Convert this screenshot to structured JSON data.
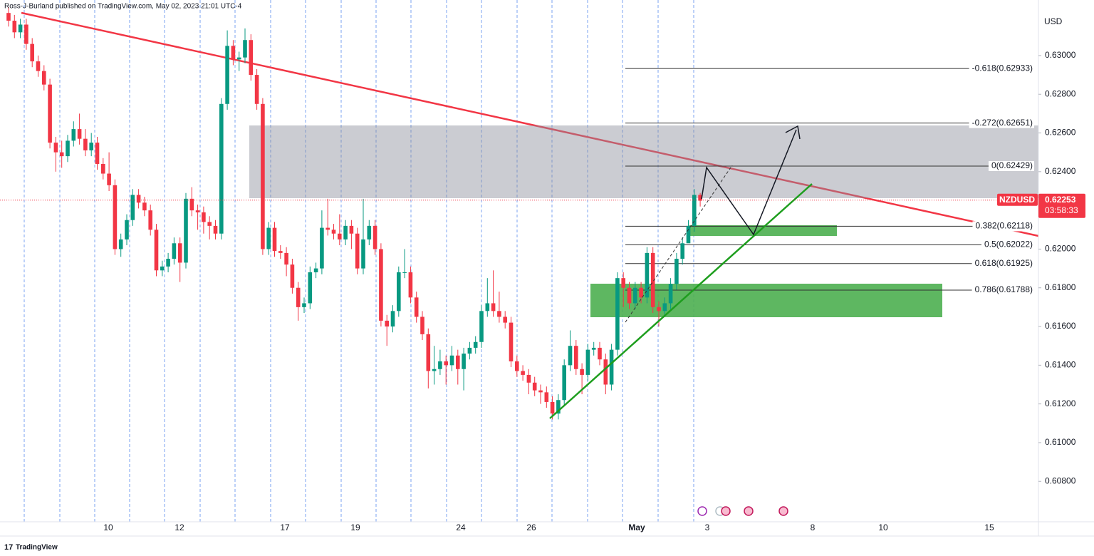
{
  "chart_data": {
    "type": "candlestick",
    "header": "Ross-J-Burland published on TradingView.com, May 02, 2023 21:01 UTC-4",
    "footer": "TradingView",
    "currency": "USD",
    "symbol": "NZDUSD",
    "last_price": 0.62253,
    "countdown": "03:58:33",
    "up_color": "#089981",
    "down_color": "#f23645",
    "ylim": [
      0.60591,
      0.63287
    ],
    "yticks": [
      {
        "value": 0.608,
        "label": "0.60800"
      },
      {
        "value": 0.61,
        "label": "0.61000"
      },
      {
        "value": 0.612,
        "label": "0.61200"
      },
      {
        "value": 0.614,
        "label": "0.61400"
      },
      {
        "value": 0.616,
        "label": "0.61600"
      },
      {
        "value": 0.618,
        "label": "0.61800"
      },
      {
        "value": 0.62,
        "label": "0.62000"
      },
      {
        "value": 0.622,
        "label": "0.62200"
      },
      {
        "value": 0.624,
        "label": "0.62400"
      },
      {
        "value": 0.626,
        "label": "0.62600"
      },
      {
        "value": 0.628,
        "label": "0.62800"
      },
      {
        "value": 0.63,
        "label": "0.63000"
      }
    ],
    "grid": false,
    "xtick_labels": [
      "10",
      "12",
      "17",
      "19",
      "24",
      "26",
      "May",
      "3",
      "8",
      "10",
      "15"
    ],
    "fib_levels": [
      {
        "label": "-0.618(0.62933)",
        "price": 0.62933
      },
      {
        "label": "-0.272(0.62651)",
        "price": 0.62651
      },
      {
        "label": "0(0.62429)",
        "price": 0.62429
      },
      {
        "label": "0.382(0.62118)",
        "price": 0.62118
      },
      {
        "label": "0.5(0.62022)",
        "price": 0.62022
      },
      {
        "label": "0.618(0.61925)",
        "price": 0.61925
      },
      {
        "label": "0.786(0.61788)",
        "price": 0.61788
      }
    ],
    "candles": [
      [
        0.6322,
        0.6325,
        0.6315,
        0.6318
      ],
      [
        0.6318,
        0.6321,
        0.6309,
        0.6312
      ],
      [
        0.6312,
        0.6319,
        0.6309,
        0.6316
      ],
      [
        0.6316,
        0.6319,
        0.6303,
        0.6306
      ],
      [
        0.6306,
        0.6309,
        0.6294,
        0.6297
      ],
      [
        0.6297,
        0.63,
        0.6289,
        0.6292
      ],
      [
        0.6292,
        0.6295,
        0.6282,
        0.6285
      ],
      [
        0.6285,
        0.6288,
        0.6252,
        0.6255
      ],
      [
        0.6255,
        0.6258,
        0.624,
        0.625
      ],
      [
        0.625,
        0.6256,
        0.6242,
        0.6248
      ],
      [
        0.6248,
        0.6259,
        0.6245,
        0.6256
      ],
      [
        0.6256,
        0.6266,
        0.6253,
        0.6262
      ],
      [
        0.6262,
        0.627,
        0.6254,
        0.6257
      ],
      [
        0.6257,
        0.6262,
        0.6248,
        0.6251
      ],
      [
        0.6251,
        0.626,
        0.6248,
        0.6255
      ],
      [
        0.6255,
        0.6258,
        0.6241,
        0.6244
      ],
      [
        0.6244,
        0.6247,
        0.6236,
        0.6239
      ],
      [
        0.6239,
        0.625,
        0.623,
        0.6233
      ],
      [
        0.6233,
        0.6236,
        0.6197,
        0.62
      ],
      [
        0.62,
        0.6208,
        0.6196,
        0.6205
      ],
      [
        0.6205,
        0.6218,
        0.6202,
        0.6215
      ],
      [
        0.6215,
        0.6231,
        0.6212,
        0.6228
      ],
      [
        0.6228,
        0.6231,
        0.6221,
        0.6224
      ],
      [
        0.6224,
        0.6227,
        0.6217,
        0.622
      ],
      [
        0.622,
        0.6223,
        0.6207,
        0.621
      ],
      [
        0.621,
        0.6213,
        0.6186,
        0.6189
      ],
      [
        0.6189,
        0.6194,
        0.6186,
        0.6191
      ],
      [
        0.6191,
        0.6198,
        0.6188,
        0.6195
      ],
      [
        0.6195,
        0.6206,
        0.6192,
        0.6203
      ],
      [
        0.6203,
        0.6206,
        0.6183,
        0.6193
      ],
      [
        0.6193,
        0.6229,
        0.619,
        0.6226
      ],
      [
        0.6226,
        0.6232,
        0.6217,
        0.622
      ],
      [
        0.622,
        0.6223,
        0.621,
        0.6219
      ],
      [
        0.6219,
        0.6222,
        0.6208,
        0.6214
      ],
      [
        0.6214,
        0.6217,
        0.6205,
        0.6212
      ],
      [
        0.6212,
        0.6215,
        0.6205,
        0.6208
      ],
      [
        0.6208,
        0.6278,
        0.6205,
        0.6275
      ],
      [
        0.6275,
        0.6313,
        0.6272,
        0.6305
      ],
      [
        0.6305,
        0.6308,
        0.6295,
        0.6298
      ],
      [
        0.6298,
        0.6302,
        0.6292,
        0.6299
      ],
      [
        0.6299,
        0.6314,
        0.6296,
        0.6308
      ],
      [
        0.6308,
        0.6311,
        0.6287,
        0.629
      ],
      [
        0.629,
        0.6293,
        0.6272,
        0.6275
      ],
      [
        0.6275,
        0.6278,
        0.6197,
        0.62
      ],
      [
        0.62,
        0.6214,
        0.6197,
        0.6211
      ],
      [
        0.6211,
        0.6214,
        0.6196,
        0.6199
      ],
      [
        0.6199,
        0.6202,
        0.6195,
        0.6198
      ],
      [
        0.6198,
        0.6201,
        0.6186,
        0.6192
      ],
      [
        0.6192,
        0.6195,
        0.6177,
        0.618
      ],
      [
        0.618,
        0.6183,
        0.6163,
        0.617
      ],
      [
        0.617,
        0.6175,
        0.6167,
        0.6172
      ],
      [
        0.6172,
        0.6191,
        0.6169,
        0.6188
      ],
      [
        0.6188,
        0.6193,
        0.6185,
        0.619
      ],
      [
        0.619,
        0.622,
        0.6187,
        0.6211
      ],
      [
        0.6211,
        0.6226,
        0.6207,
        0.621
      ],
      [
        0.621,
        0.6213,
        0.6205,
        0.6208
      ],
      [
        0.6208,
        0.6218,
        0.6202,
        0.6205
      ],
      [
        0.6205,
        0.6215,
        0.6202,
        0.6212
      ],
      [
        0.6212,
        0.6215,
        0.62,
        0.6208
      ],
      [
        0.6208,
        0.6211,
        0.6187,
        0.619
      ],
      [
        0.619,
        0.6226,
        0.6187,
        0.6205
      ],
      [
        0.6205,
        0.6215,
        0.6202,
        0.6212
      ],
      [
        0.6212,
        0.6215,
        0.6197,
        0.62
      ],
      [
        0.62,
        0.6203,
        0.616,
        0.6163
      ],
      [
        0.6163,
        0.6166,
        0.615,
        0.616
      ],
      [
        0.616,
        0.6171,
        0.6157,
        0.6168
      ],
      [
        0.6168,
        0.6191,
        0.6165,
        0.6188
      ],
      [
        0.6188,
        0.62,
        0.6185,
        0.6188
      ],
      [
        0.6188,
        0.6191,
        0.6172,
        0.6175
      ],
      [
        0.6175,
        0.6178,
        0.6162,
        0.6165
      ],
      [
        0.6165,
        0.6168,
        0.6153,
        0.6156
      ],
      [
        0.6156,
        0.6159,
        0.6128,
        0.6137
      ],
      [
        0.6137,
        0.615,
        0.613,
        0.6138
      ],
      [
        0.6138,
        0.6148,
        0.6135,
        0.6142
      ],
      [
        0.6142,
        0.6145,
        0.613,
        0.614
      ],
      [
        0.614,
        0.615,
        0.6137,
        0.6145
      ],
      [
        0.6145,
        0.6148,
        0.613,
        0.6138
      ],
      [
        0.6138,
        0.6149,
        0.6127,
        0.6146
      ],
      [
        0.6146,
        0.6152,
        0.6143,
        0.6149
      ],
      [
        0.6149,
        0.6155,
        0.6146,
        0.6152
      ],
      [
        0.6152,
        0.6171,
        0.6149,
        0.6168
      ],
      [
        0.6168,
        0.6185,
        0.6165,
        0.6172
      ],
      [
        0.6172,
        0.6189,
        0.6165,
        0.6168
      ],
      [
        0.6168,
        0.6178,
        0.6162,
        0.6165
      ],
      [
        0.6165,
        0.6168,
        0.6159,
        0.6162
      ],
      [
        0.6162,
        0.6165,
        0.6139,
        0.6142
      ],
      [
        0.6142,
        0.6145,
        0.6134,
        0.6137
      ],
      [
        0.6137,
        0.614,
        0.6132,
        0.6135
      ],
      [
        0.6135,
        0.6138,
        0.6125,
        0.6131
      ],
      [
        0.6131,
        0.6134,
        0.6124,
        0.6127
      ],
      [
        0.6127,
        0.613,
        0.612,
        0.6126
      ],
      [
        0.6126,
        0.6129,
        0.6118,
        0.6121
      ],
      [
        0.6121,
        0.6124,
        0.6112,
        0.6115
      ],
      [
        0.6115,
        0.6125,
        0.6112,
        0.6122
      ],
      [
        0.6122,
        0.6143,
        0.6119,
        0.614
      ],
      [
        0.614,
        0.6158,
        0.6137,
        0.615
      ],
      [
        0.615,
        0.6153,
        0.6135,
        0.6138
      ],
      [
        0.6138,
        0.6141,
        0.6125,
        0.6135
      ],
      [
        0.6135,
        0.6151,
        0.6132,
        0.6148
      ],
      [
        0.6148,
        0.6152,
        0.6145,
        0.6149
      ],
      [
        0.6149,
        0.6152,
        0.614,
        0.6143
      ],
      [
        0.6143,
        0.6146,
        0.6125,
        0.613
      ],
      [
        0.613,
        0.6151,
        0.6127,
        0.6148
      ],
      [
        0.6148,
        0.6188,
        0.6145,
        0.6185
      ],
      [
        0.6185,
        0.6188,
        0.617,
        0.618
      ],
      [
        0.618,
        0.6183,
        0.6169,
        0.6172
      ],
      [
        0.6172,
        0.6183,
        0.6169,
        0.618
      ],
      [
        0.618,
        0.6183,
        0.6172,
        0.6175
      ],
      [
        0.6175,
        0.6201,
        0.6172,
        0.6198
      ],
      [
        0.6198,
        0.6201,
        0.6167,
        0.617
      ],
      [
        0.617,
        0.6173,
        0.616,
        0.6168
      ],
      [
        0.6168,
        0.6175,
        0.6165,
        0.6172
      ],
      [
        0.6172,
        0.6185,
        0.6169,
        0.6182
      ],
      [
        0.6182,
        0.6198,
        0.6179,
        0.6195
      ],
      [
        0.6195,
        0.6206,
        0.6192,
        0.6203
      ],
      [
        0.6203,
        0.6215,
        0.6205,
        0.6212
      ],
      [
        0.6212,
        0.6231,
        0.6209,
        0.6228
      ],
      [
        0.6228,
        0.6229,
        0.6222,
        0.6225
      ]
    ]
  }
}
